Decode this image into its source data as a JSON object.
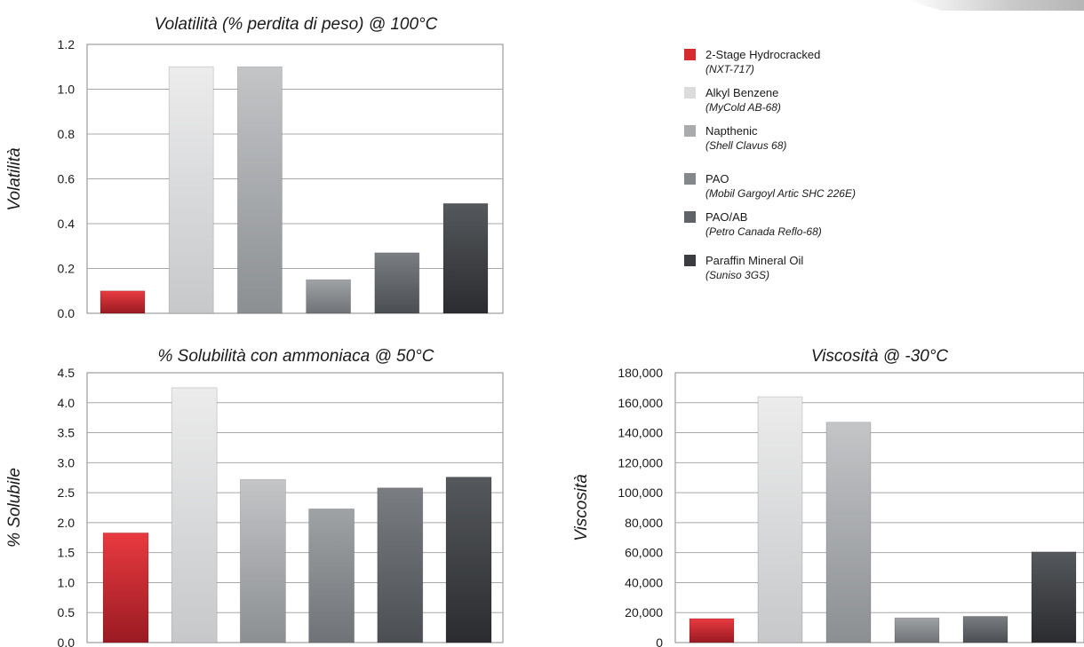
{
  "legend": [
    {
      "name": "2-Stage Hydrocracked",
      "sub": "(NXT-717)",
      "color": "#d42a30"
    },
    {
      "name": "Alkyl Benzene",
      "sub": "(MyCold AB-68)",
      "color": "#dcdcdc"
    },
    {
      "name": "Napthenic",
      "sub": "(Shell Clavus 68)",
      "color": "#a9abad"
    },
    {
      "name": "PAO",
      "sub": "(Mobil Gargoyl Artic SHC 226E)",
      "color": "#85888b"
    },
    {
      "name": "PAO/AB",
      "sub": "(Petro Canada Reflo-68)",
      "color": "#5f6266"
    },
    {
      "name": "Paraffin Mineral Oil",
      "sub": "(Suniso 3GS)",
      "color": "#3a3c3f"
    }
  ],
  "chart_data": [
    {
      "type": "bar",
      "title": "Volatilità (% perdita di peso) @ 100°C",
      "ylabel": "Volatilità",
      "xlabel": "",
      "ylim": [
        0,
        1.2
      ],
      "ticks": [
        "0.0",
        "0.2",
        "0.4",
        "0.6",
        "0.8",
        "1.0",
        "1.2"
      ],
      "tick_values": [
        0,
        0.2,
        0.4,
        0.6,
        0.8,
        1.0,
        1.2
      ],
      "categories": [
        "2-Stage Hydrocracked",
        "Alkyl Benzene",
        "Napthenic",
        "PAO",
        "PAO/AB",
        "Paraffin Mineral Oil"
      ],
      "values": [
        0.1,
        1.1,
        1.1,
        0.15,
        0.27,
        0.49
      ],
      "grid": true
    },
    {
      "type": "bar",
      "title": "% Solubilità con ammoniaca @ 50°C",
      "ylabel": "% Solubile",
      "xlabel": "",
      "ylim": [
        0,
        4.5
      ],
      "ticks": [
        "0.0",
        "0.5",
        "1.0",
        "1.5",
        "2.0",
        "2.5",
        "3.0",
        "3.5",
        "4.0",
        "4.5"
      ],
      "tick_values": [
        0,
        0.5,
        1.0,
        1.5,
        2.0,
        2.5,
        3.0,
        3.5,
        4.0,
        4.5
      ],
      "categories": [
        "2-Stage Hydrocracked",
        "Alkyl Benzene",
        "Napthenic",
        "PAO",
        "PAO/AB",
        "Paraffin Mineral Oil"
      ],
      "values": [
        1.83,
        4.25,
        2.72,
        2.23,
        2.58,
        2.76
      ],
      "grid": true
    },
    {
      "type": "bar",
      "title": "Viscosità @ -30°C",
      "ylabel": "Viscosità",
      "xlabel": "",
      "ylim": [
        0,
        180000
      ],
      "ticks": [
        "0",
        "20,000",
        "40,000",
        "60,000",
        "80,000",
        "100,000",
        "120,000",
        "140,000",
        "160,000",
        "180,000"
      ],
      "tick_values": [
        0,
        20000,
        40000,
        60000,
        80000,
        100000,
        120000,
        140000,
        160000,
        180000
      ],
      "categories": [
        "2-Stage Hydrocracked",
        "Alkyl Benzene",
        "Napthenic",
        "PAO",
        "PAO/AB",
        "Paraffin Mineral Oil"
      ],
      "values": [
        16000,
        164000,
        147000,
        16500,
        17500,
        60500
      ],
      "grid": true
    }
  ]
}
